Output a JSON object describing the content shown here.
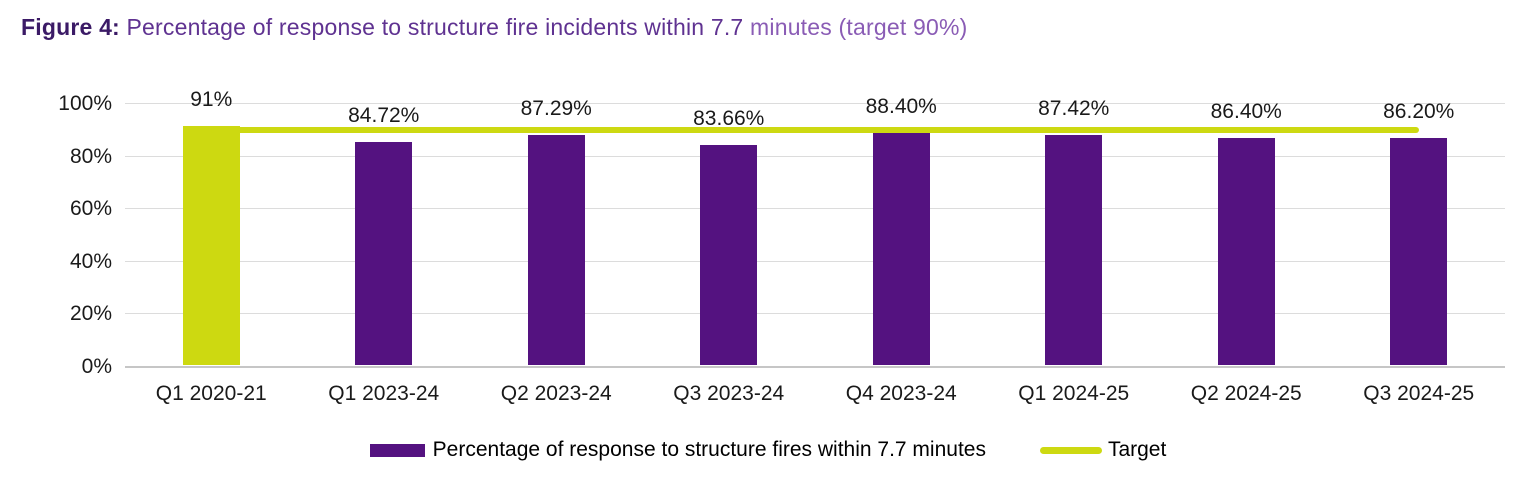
{
  "title": {
    "prefix": "Figure 4:",
    "main": " Percentage of response to structure fire incidents within 7.7 ",
    "suffix": "minutes (target 90%)"
  },
  "colors": {
    "title_prefix": "#3b1a66",
    "title_main": "#5f3291",
    "title_suffix": "#8a5cb5",
    "bar_purple": "#541280",
    "lime": "#cdd911",
    "gridline": "#dcdcdc",
    "axis_line": "#c6c6c6",
    "label_text": "#1a1a1a"
  },
  "chart_data": {
    "type": "bar",
    "title": "Figure 4: Percentage of response to structure fire incidents within 7.7 minutes (target 90%)",
    "categories": [
      "Q1 2020-21",
      "Q1 2023-24",
      "Q2 2023-24",
      "Q3 2023-24",
      "Q4 2023-24",
      "Q1 2024-25",
      "Q2 2024-25",
      "Q3 2024-25"
    ],
    "series": [
      {
        "name": "Percentage of response to structure fires within 7.7 minutes",
        "type": "bar",
        "values": [
          91,
          84.72,
          87.29,
          83.66,
          88.4,
          87.42,
          86.4,
          86.2
        ],
        "labels": [
          "91%",
          "84.72%",
          "87.29%",
          "83.66%",
          "88.40%",
          "87.42%",
          "86.40%",
          "86.20%"
        ],
        "color": "#541280",
        "first_bar_color": "#cdd911"
      },
      {
        "name": "Target",
        "type": "line",
        "value": 90,
        "color": "#cdd911"
      }
    ],
    "xlabel": "",
    "ylabel": "",
    "ylim": [
      0,
      100
    ],
    "y_ticks": [
      "0%",
      "20%",
      "40%",
      "60%",
      "80%",
      "100%"
    ],
    "grid": true,
    "legend_position": "bottom"
  },
  "legend": {
    "series_label": "Percentage of response to structure fires within 7.7 minutes",
    "target_label": "Target"
  }
}
